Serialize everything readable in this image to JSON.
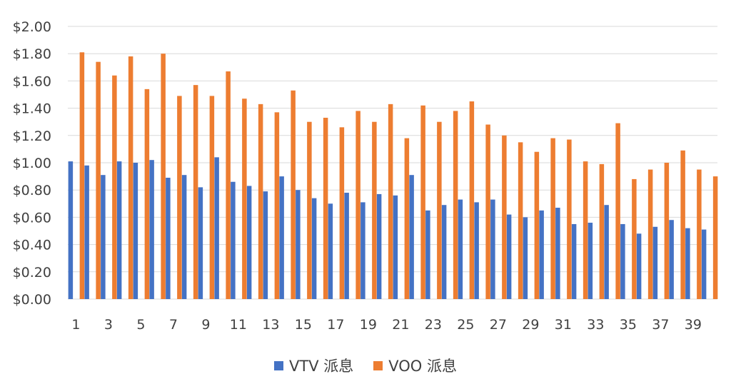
{
  "chart_data": {
    "type": "bar",
    "categories": [
      1,
      2,
      3,
      4,
      5,
      6,
      7,
      8,
      9,
      10,
      11,
      12,
      13,
      14,
      15,
      16,
      17,
      18,
      19,
      20,
      21,
      22,
      23,
      24,
      25,
      26,
      27,
      28,
      29,
      30,
      31,
      32,
      33,
      34,
      35,
      36,
      37,
      38,
      39,
      40
    ],
    "x_tick_labels": [
      "1",
      "3",
      "5",
      "7",
      "9",
      "11",
      "13",
      "15",
      "17",
      "19",
      "21",
      "23",
      "25",
      "27",
      "29",
      "31",
      "33",
      "35",
      "37",
      "39"
    ],
    "y_tick_labels": [
      "$0.00",
      "$0.20",
      "$0.40",
      "$0.60",
      "$0.80",
      "$1.00",
      "$1.20",
      "$1.40",
      "$1.60",
      "$1.80",
      "$2.00"
    ],
    "ylim": [
      0,
      2.0
    ],
    "grid": true,
    "legend_position": "bottom",
    "series": [
      {
        "name": "VTV 派息",
        "color": "#4472C4",
        "values": [
          1.01,
          0.98,
          0.91,
          1.01,
          1.0,
          1.02,
          0.89,
          0.91,
          0.82,
          1.04,
          0.86,
          0.83,
          0.79,
          0.9,
          0.8,
          0.74,
          0.7,
          0.78,
          0.71,
          0.77,
          0.76,
          0.91,
          0.65,
          0.69,
          0.73,
          0.71,
          0.73,
          0.62,
          0.6,
          0.65,
          0.67,
          0.55,
          0.56,
          0.69,
          0.55,
          0.48,
          0.53,
          0.58,
          0.52,
          0.51
        ]
      },
      {
        "name": "VOO 派息",
        "color": "#ED7D31",
        "values": [
          1.81,
          1.74,
          1.64,
          1.78,
          1.54,
          1.8,
          1.49,
          1.57,
          1.49,
          1.67,
          1.47,
          1.43,
          1.37,
          1.53,
          1.3,
          1.33,
          1.26,
          1.38,
          1.3,
          1.43,
          1.18,
          1.42,
          1.3,
          1.38,
          1.45,
          1.28,
          1.2,
          1.15,
          1.08,
          1.18,
          1.17,
          1.01,
          0.99,
          1.29,
          0.88,
          0.95,
          1.0,
          1.09,
          0.95,
          0.9
        ]
      }
    ]
  },
  "legend": {
    "items": [
      {
        "label": "VTV 派息",
        "color": "#4472C4"
      },
      {
        "label": "VOO 派息",
        "color": "#ED7D31"
      }
    ]
  }
}
